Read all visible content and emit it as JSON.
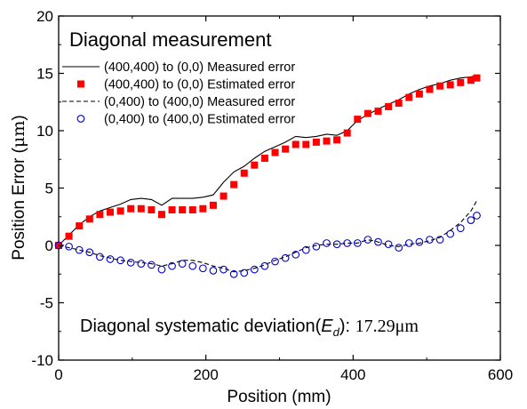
{
  "chart_data": {
    "type": "line",
    "title": "Diagonal measurement",
    "xlabel": "Position (mm)",
    "ylabel_prefix": "Position Error (",
    "ylabel_unit": "μm",
    "ylabel_suffix": ")",
    "xlim": [
      0,
      600
    ],
    "ylim": [
      -10,
      20
    ],
    "xticks": [
      0,
      200,
      400,
      600
    ],
    "yticks": [
      -10,
      -5,
      0,
      5,
      10,
      15,
      20
    ],
    "grid": false,
    "legend_position": "top-left",
    "annotation": {
      "prefix": "Diagonal systematic deviation(",
      "symbol": "E",
      "subscript": "d",
      "suffix": "): ",
      "value": "17.29μm"
    },
    "series": [
      {
        "name": "(400,400) to (0,0) Measured error",
        "style": "solid-line",
        "color": "#000000",
        "x": [
          0,
          14,
          28,
          42,
          56,
          70,
          84,
          98,
          112,
          126,
          140,
          154,
          168,
          182,
          196,
          210,
          224,
          238,
          252,
          266,
          280,
          294,
          308,
          322,
          336,
          350,
          364,
          378,
          392,
          406,
          420,
          434,
          448,
          462,
          476,
          490,
          504,
          518,
          532,
          546,
          560,
          568
        ],
        "y": [
          0.0,
          0.9,
          1.8,
          2.5,
          3.0,
          3.3,
          3.6,
          4.0,
          4.1,
          4.0,
          3.5,
          4.1,
          4.1,
          4.1,
          4.2,
          4.4,
          5.5,
          6.4,
          6.9,
          7.6,
          8.2,
          8.6,
          9.0,
          9.5,
          9.4,
          9.5,
          9.7,
          9.6,
          10.0,
          10.9,
          11.4,
          11.9,
          12.3,
          12.7,
          13.2,
          13.6,
          13.9,
          14.1,
          14.4,
          14.6,
          14.7,
          14.8
        ]
      },
      {
        "name": "(400,400) to (0,0) Estimated error",
        "style": "filled-square",
        "color": "#ff0000",
        "x": [
          0,
          14,
          28,
          42,
          56,
          70,
          84,
          98,
          112,
          126,
          140,
          154,
          168,
          182,
          196,
          210,
          224,
          238,
          252,
          266,
          280,
          294,
          308,
          322,
          336,
          350,
          364,
          378,
          392,
          406,
          420,
          434,
          448,
          462,
          476,
          490,
          504,
          518,
          532,
          546,
          560,
          568
        ],
        "y": [
          0.0,
          0.8,
          1.7,
          2.3,
          2.7,
          2.9,
          3.0,
          3.2,
          3.2,
          3.1,
          2.7,
          3.1,
          3.1,
          3.1,
          3.2,
          3.5,
          4.3,
          5.3,
          6.3,
          7.0,
          7.6,
          8.1,
          8.4,
          8.8,
          8.8,
          9.0,
          9.1,
          9.2,
          9.8,
          11.0,
          11.5,
          11.7,
          12.1,
          12.4,
          12.9,
          13.2,
          13.6,
          13.9,
          14.0,
          14.2,
          14.4,
          14.6
        ]
      },
      {
        "name": "(0,400) to (400,0) Measured error",
        "style": "dashed-line",
        "color": "#000000",
        "x": [
          0,
          14,
          28,
          42,
          56,
          70,
          84,
          98,
          112,
          126,
          140,
          154,
          168,
          182,
          196,
          210,
          224,
          238,
          252,
          266,
          280,
          294,
          308,
          322,
          336,
          350,
          364,
          378,
          392,
          406,
          420,
          434,
          448,
          462,
          476,
          490,
          504,
          518,
          532,
          546,
          560,
          568
        ],
        "y": [
          0.0,
          -0.2,
          -0.4,
          -0.6,
          -0.9,
          -1.1,
          -1.3,
          -1.4,
          -1.5,
          -1.6,
          -1.8,
          -1.6,
          -1.3,
          -1.3,
          -1.5,
          -1.8,
          -2.0,
          -2.3,
          -2.2,
          -2.0,
          -1.7,
          -1.3,
          -1.0,
          -0.6,
          -0.2,
          0.0,
          0.1,
          0.1,
          0.2,
          0.2,
          0.5,
          0.3,
          0.0,
          -0.1,
          0.1,
          0.2,
          0.4,
          0.7,
          1.3,
          2.0,
          3.0,
          3.9
        ]
      },
      {
        "name": "(0,400) to (400,0) Estimated error",
        "style": "open-circle",
        "color": "#0000cc",
        "x": [
          0,
          14,
          28,
          42,
          56,
          70,
          84,
          98,
          112,
          126,
          140,
          154,
          168,
          182,
          196,
          210,
          224,
          238,
          252,
          266,
          280,
          294,
          308,
          322,
          336,
          350,
          364,
          378,
          392,
          406,
          420,
          434,
          448,
          462,
          476,
          490,
          504,
          518,
          532,
          546,
          560,
          568
        ],
        "y": [
          0.0,
          -0.1,
          -0.4,
          -0.6,
          -1.0,
          -1.2,
          -1.3,
          -1.5,
          -1.6,
          -1.7,
          -2.1,
          -1.8,
          -1.6,
          -1.8,
          -2.0,
          -2.2,
          -2.1,
          -2.5,
          -2.4,
          -2.1,
          -1.8,
          -1.4,
          -1.1,
          -0.8,
          -0.4,
          -0.1,
          0.2,
          0.1,
          0.2,
          0.2,
          0.5,
          0.3,
          0.1,
          -0.2,
          0.2,
          0.3,
          0.5,
          0.5,
          1.0,
          1.5,
          2.2,
          2.6
        ]
      }
    ]
  }
}
